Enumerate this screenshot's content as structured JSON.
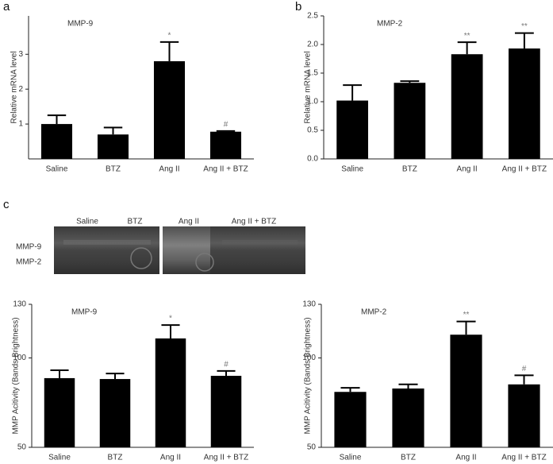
{
  "panels": [
    "a",
    "b",
    "c"
  ],
  "gel": {
    "lanes": [
      "Saline",
      "BTZ",
      "Ang II",
      "Ang II + BTZ"
    ],
    "bands": [
      "MMP-9",
      "MMP-2"
    ]
  },
  "chart_data": [
    {
      "type": "bar",
      "title": "MMP-9",
      "ylabel": "Relative mRNA level",
      "categories": [
        "Saline",
        "BTZ",
        "Ang II",
        "Ang II + BTZ"
      ],
      "values": [
        1.0,
        0.7,
        2.8,
        0.78
      ],
      "errors": [
        0.25,
        0.2,
        0.55,
        0.02
      ],
      "color": "#000000",
      "ylim": [
        0,
        4.1
      ],
      "yticks": [
        1,
        2,
        3
      ],
      "annotations": [
        {
          "category": "Ang II",
          "text": "*"
        },
        {
          "category": "Ang II + BTZ",
          "text": "#"
        }
      ]
    },
    {
      "type": "bar",
      "title": "MMP-2",
      "ylabel": "Relative mRNA level",
      "categories": [
        "Saline",
        "BTZ",
        "Ang II",
        "Ang II + BTZ"
      ],
      "values": [
        1.02,
        1.33,
        1.83,
        1.93
      ],
      "errors": [
        0.27,
        0.03,
        0.21,
        0.27
      ],
      "color": "#000000",
      "ylim": [
        0,
        2.5
      ],
      "yticks": [
        {
          "value": 0,
          "label": "0.0"
        },
        0.5,
        {
          "value": 1,
          "label": "1.0"
        },
        1.5,
        {
          "value": 2,
          "label": "2.0"
        },
        2.5
      ],
      "annotations": [
        {
          "category": "Ang II",
          "text": "**"
        },
        {
          "category": "Ang II + BTZ",
          "text": "**"
        }
      ]
    },
    {
      "type": "bar",
      "title": "MMP-9",
      "ylabel": "MMP Acitivity (Bands Brightness)",
      "categories": [
        "Saline",
        "BTZ",
        "Ang II",
        "Ang II + BTZ"
      ],
      "values": [
        88.7,
        88.2,
        110.9,
        90
      ],
      "errors": [
        4.4,
        3.1,
        7.5,
        2.7
      ],
      "color": "#000000",
      "ylim": [
        50,
        130
      ],
      "yticks": [
        50,
        100,
        130
      ],
      "annotations": [
        {
          "category": "Ang II",
          "text": "*"
        },
        {
          "category": "Ang II + BTZ",
          "text": "#"
        }
      ]
    },
    {
      "type": "bar",
      "title": "MMP-2",
      "ylabel": "MMP Acitivity (Bands Brightness)",
      "categories": [
        "Saline",
        "BTZ",
        "Ang II",
        "Ang II + BTZ"
      ],
      "values": [
        81,
        82.9,
        113,
        85.2
      ],
      "errors": [
        2.3,
        2.3,
        7.4,
        5.1
      ],
      "color": "#000000",
      "ylim": [
        50,
        130
      ],
      "yticks": [
        50,
        100,
        130
      ],
      "annotations": [
        {
          "category": "Ang II",
          "text": "**"
        },
        {
          "category": "Ang II + BTZ",
          "text": "#"
        }
      ]
    }
  ]
}
